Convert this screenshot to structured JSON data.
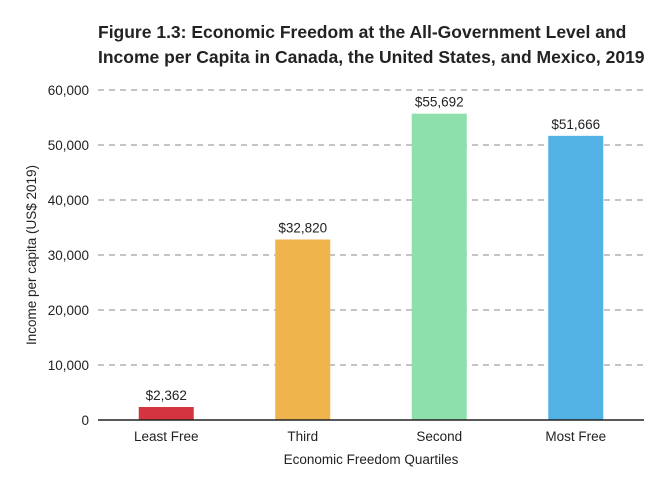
{
  "chart_data": {
    "type": "bar",
    "title": "Figure 1.3: Economic Freedom at the All-Government Level and Income per Capita in Canada, the United States, and Mexico, 2019",
    "xlabel": "Economic Freedom Quartiles",
    "ylabel": "Income per capita (US$ 2019)",
    "categories": [
      "Least Free",
      "Third",
      "Second",
      "Most Free"
    ],
    "values": [
      2362,
      32820,
      55692,
      51666
    ],
    "data_labels": [
      "$2,362",
      "$32,820",
      "$55,692",
      "$51,666"
    ],
    "colors": [
      "#d3343f",
      "#f0b44c",
      "#8ddfac",
      "#52b2e4"
    ],
    "ylim": [
      0,
      60000
    ],
    "yticks": [
      0,
      10000,
      20000,
      30000,
      40000,
      50000,
      60000
    ],
    "ytick_labels": [
      "0",
      "10,000",
      "20,000",
      "30,000",
      "40,000",
      "50,000",
      "60,000"
    ],
    "grid": "horizontal dashed",
    "legend": "none"
  }
}
